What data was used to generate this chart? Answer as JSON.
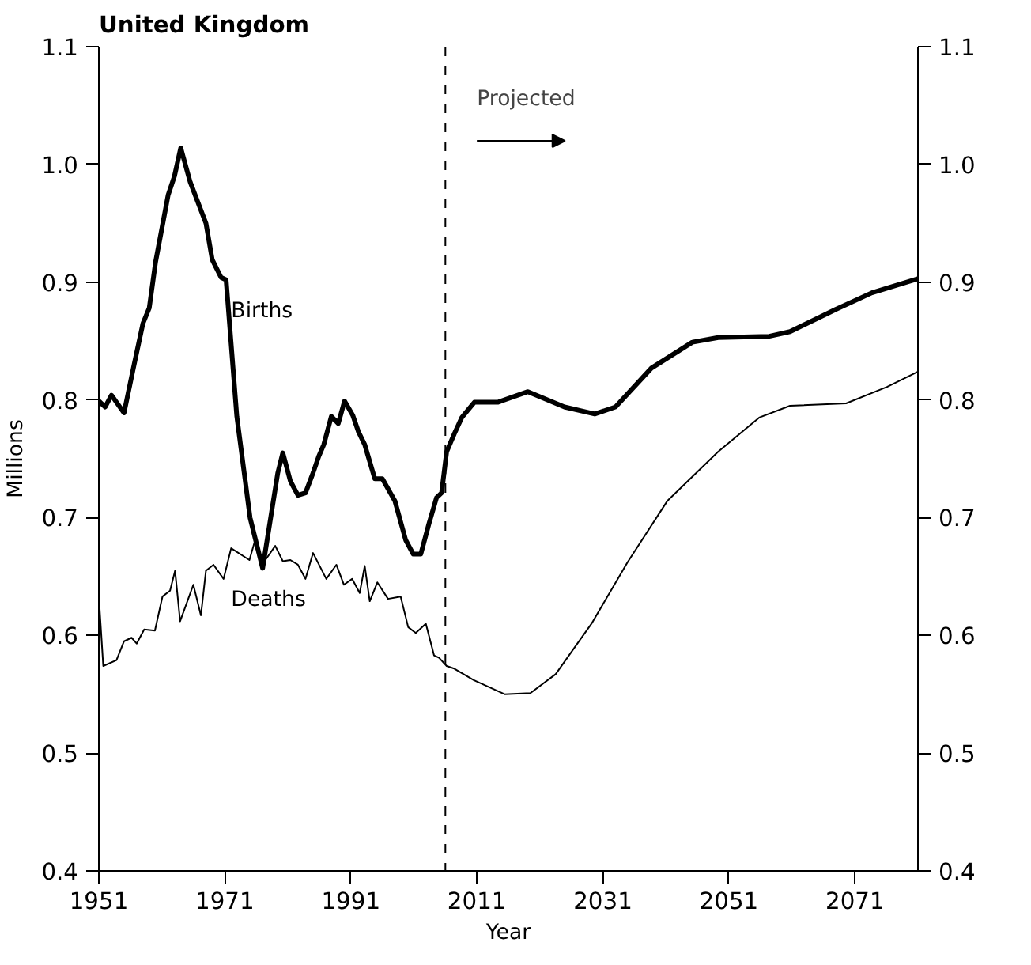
{
  "chart_data": {
    "type": "line",
    "title": "United Kingdom",
    "xlabel": "Year",
    "ylabel": "Millions",
    "xlim": [
      1951,
      2081
    ],
    "xticks": [
      1951,
      1971,
      1991,
      2011,
      2031,
      2051,
      2071
    ],
    "ylim": [
      0.4,
      1.1
    ],
    "yticks": [
      0.4,
      0.5,
      0.6,
      0.7,
      0.8,
      0.9,
      {
        "value": 1.0,
        "label": "1.0"
      },
      1.1
    ],
    "y2lim": [
      0.4,
      1.1
    ],
    "y2ticks": [
      0.4,
      0.5,
      0.6,
      0.7,
      0.8,
      0.9,
      {
        "value": 1.0,
        "label": "1.0"
      },
      1.1
    ],
    "grid": false,
    "marker": "none",
    "line_style": "solid",
    "ref_lines": [
      {
        "axis": "x",
        "value": 2006,
        "label": "Projected",
        "line_style": "dashed",
        "color": "#000000"
      }
    ],
    "series": [
      {
        "name": "Births",
        "color": "#000000",
        "x": [
          1951,
          1952,
          1953,
          1955,
          1956.6,
          1958,
          1959,
          1960,
          1962,
          1963,
          1964,
          1965.5,
          1968,
          1969,
          1970.4,
          1971.2,
          1972.9,
          1975,
          1977,
          1979.4,
          1980.2,
          1981.4,
          1982.6,
          1983.8,
          1985,
          1985.9,
          1986.7,
          1987.9,
          1989,
          1990,
          1991.3,
          1992.2,
          1993.2,
          1994.8,
          1996,
          1998,
          1999.7,
          2000.9,
          2002.1,
          2003.4,
          2004.6,
          2005.4,
          2006.2,
          2007.4,
          2008.6,
          2010.6,
          2014.3,
          2019.1,
          2024.9,
          2029.7,
          2033,
          2038.7,
          2045.2,
          2049.3,
          2057.4,
          2060.7,
          2068,
          2073.7,
          2081
        ],
        "values": [
          0.799,
          0.794,
          0.804,
          0.789,
          0.83,
          0.865,
          0.878,
          0.917,
          0.974,
          0.99,
          1.014,
          0.985,
          0.95,
          0.919,
          0.904,
          0.902,
          0.786,
          0.7,
          0.657,
          0.738,
          0.755,
          0.731,
          0.719,
          0.721,
          0.738,
          0.752,
          0.762,
          0.786,
          0.78,
          0.799,
          0.787,
          0.773,
          0.762,
          0.733,
          0.733,
          0.714,
          0.681,
          0.669,
          0.669,
          0.695,
          0.717,
          0.721,
          0.756,
          0.771,
          0.785,
          0.798,
          0.798,
          0.807,
          0.794,
          0.788,
          0.794,
          0.827,
          0.849,
          0.853,
          0.854,
          0.858,
          0.877,
          0.891,
          0.903
        ]
      },
      {
        "name": "Deaths",
        "color": "#000000",
        "x": [
          1951,
          1951.7,
          1953.8,
          1955,
          1956.2,
          1957,
          1958.2,
          1959.9,
          1961.1,
          1962.3,
          1963.1,
          1963.9,
          1966,
          1967.2,
          1968,
          1969.2,
          1970.8,
          1972,
          1974.9,
          1975.7,
          1976.9,
          1979,
          1980.2,
          1981.4,
          1982.6,
          1983.8,
          1985,
          1987.1,
          1988.7,
          1989.9,
          1991.2,
          1992.4,
          1993.2,
          1994,
          1995.2,
          1996.9,
          1998.9,
          2000.1,
          2001.3,
          2002.9,
          2004.2,
          2005,
          2006.2,
          2007.3,
          2010.5,
          2015.4,
          2019.5,
          2023.5,
          2029.2,
          2034.9,
          2041.2,
          2049.3,
          2055.8,
          2060.7,
          2069.6,
          2076.1,
          2081
        ],
        "values": [
          0.633,
          0.574,
          0.579,
          0.595,
          0.598,
          0.593,
          0.605,
          0.604,
          0.633,
          0.638,
          0.655,
          0.612,
          0.643,
          0.617,
          0.655,
          0.66,
          0.648,
          0.674,
          0.664,
          0.679,
          0.66,
          0.676,
          0.663,
          0.664,
          0.66,
          0.648,
          0.67,
          0.648,
          0.66,
          0.643,
          0.648,
          0.636,
          0.659,
          0.629,
          0.645,
          0.631,
          0.633,
          0.607,
          0.602,
          0.61,
          0.583,
          0.581,
          0.574,
          0.572,
          0.562,
          0.55,
          0.551,
          0.567,
          0.61,
          0.662,
          0.714,
          0.756,
          0.785,
          0.795,
          0.797,
          0.811,
          0.824
        ]
      }
    ]
  }
}
